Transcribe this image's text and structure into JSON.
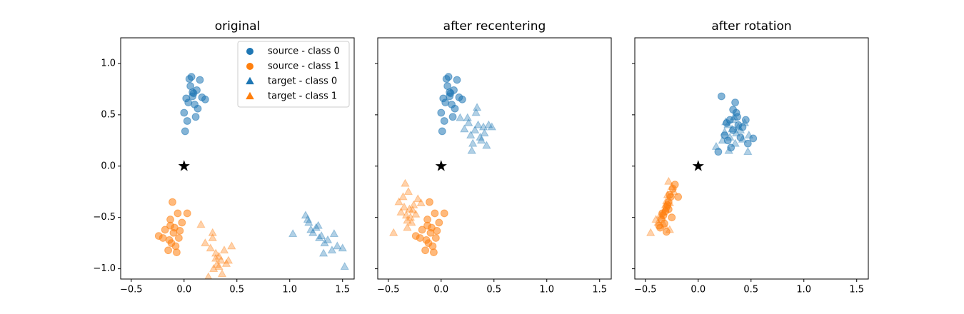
{
  "chart_data": [
    {
      "type": "scatter",
      "title": "original",
      "xlim": [
        -0.6,
        1.61
      ],
      "ylim": [
        -1.1,
        1.25
      ],
      "xticks": [
        {
          "value": -0.5,
          "label": "−0.5"
        },
        {
          "value": 0,
          "label": "0.0"
        },
        {
          "value": 0.5,
          "label": "0.5"
        },
        {
          "value": 1,
          "label": "1.0"
        },
        {
          "value": 1.5,
          "label": "1.5"
        }
      ],
      "yticks": [
        {
          "value": -1,
          "label": "−1.0"
        },
        {
          "value": -0.5,
          "label": "−0.5"
        },
        {
          "value": 0,
          "label": "0.0"
        },
        {
          "value": 0.5,
          "label": "0.5"
        },
        {
          "value": 1,
          "label": "1.0"
        }
      ],
      "legend": "upper right",
      "series": [
        {
          "name": "source - class 0",
          "color": "#1f77b4",
          "marker": "circle",
          "alpha": 0.55,
          "x": [
            0.08,
            0.05,
            0.12,
            0.02,
            0.1,
            0.06,
            0.15,
            0.0,
            0.09,
            0.04,
            0.2,
            0.13,
            0.07,
            0.03,
            0.17,
            0.11,
            0.01,
            0.08
          ],
          "y": [
            0.68,
            0.85,
            0.74,
            0.66,
            0.6,
            0.78,
            0.84,
            0.52,
            0.71,
            0.62,
            0.65,
            0.56,
            0.87,
            0.44,
            0.67,
            0.48,
            0.34,
            0.72
          ]
        },
        {
          "name": "source - class 1",
          "color": "#ff7f0e",
          "marker": "circle",
          "alpha": 0.55,
          "x": [
            -0.1,
            -0.13,
            -0.05,
            -0.18,
            -0.08,
            -0.02,
            -0.14,
            -0.11,
            -0.24,
            -0.06,
            -0.15,
            -0.09,
            0.03,
            -0.12,
            -0.04,
            -0.2,
            -0.07,
            -0.13
          ],
          "y": [
            -0.65,
            -0.58,
            -0.7,
            -0.62,
            -0.78,
            -0.55,
            -0.72,
            -0.35,
            -0.68,
            -0.46,
            -0.82,
            -0.6,
            -0.46,
            -0.75,
            -0.63,
            -0.7,
            -0.84,
            -0.52
          ]
        },
        {
          "name": "target - class 0",
          "color": "#1f77b4",
          "marker": "triangle",
          "alpha": 0.35,
          "x": [
            1.22,
            1.28,
            1.18,
            1.33,
            1.25,
            1.4,
            1.15,
            1.3,
            1.36,
            1.2,
            1.45,
            1.27,
            1.03,
            1.5,
            1.32,
            1.17,
            1.42,
            1.52
          ],
          "y": [
            -0.65,
            -0.7,
            -0.55,
            -0.75,
            -0.6,
            -0.82,
            -0.48,
            -0.68,
            -0.72,
            -0.62,
            -0.78,
            -0.58,
            -0.66,
            -0.8,
            -0.85,
            -0.52,
            -0.66,
            -0.98
          ]
        },
        {
          "name": "target - class 1",
          "color": "#ff7f0e",
          "marker": "triangle",
          "alpha": 0.35,
          "x": [
            0.3,
            0.35,
            0.25,
            0.4,
            0.28,
            0.33,
            0.2,
            0.38,
            0.31,
            0.45,
            0.16,
            0.27,
            0.36,
            0.3,
            0.42,
            0.23,
            0.33,
            0.27
          ],
          "y": [
            -0.85,
            -0.92,
            -0.8,
            -0.95,
            -1.0,
            -0.88,
            -0.75,
            -0.82,
            -0.96,
            -0.78,
            -0.57,
            -0.65,
            -1.05,
            -0.9,
            -0.92,
            -1.08,
            -0.98,
            -0.7
          ]
        },
        {
          "color": "#000000",
          "marker": "star",
          "alpha": 1,
          "x": [
            0
          ],
          "y": [
            0
          ]
        }
      ]
    },
    {
      "type": "scatter",
      "title": "after recentering",
      "xlim": [
        -0.6,
        1.61
      ],
      "ylim": [
        -1.1,
        1.25
      ],
      "xticks": [
        {
          "value": -0.5,
          "label": "−0.5"
        },
        {
          "value": 0,
          "label": "0.0"
        },
        {
          "value": 0.5,
          "label": "0.5"
        },
        {
          "value": 1,
          "label": "1.0"
        },
        {
          "value": 1.5,
          "label": "1.5"
        }
      ],
      "series": [
        {
          "color": "#1f77b4",
          "marker": "circle",
          "alpha": 0.55,
          "x": [
            0.08,
            0.05,
            0.12,
            0.02,
            0.1,
            0.06,
            0.15,
            0.0,
            0.09,
            0.04,
            0.2,
            0.13,
            0.07,
            0.03,
            0.17,
            0.11,
            0.01,
            0.08
          ],
          "y": [
            0.68,
            0.85,
            0.74,
            0.66,
            0.6,
            0.78,
            0.84,
            0.52,
            0.71,
            0.62,
            0.65,
            0.56,
            0.87,
            0.44,
            0.67,
            0.48,
            0.34,
            0.72
          ]
        },
        {
          "color": "#ff7f0e",
          "marker": "circle",
          "alpha": 0.55,
          "x": [
            -0.1,
            -0.13,
            -0.05,
            -0.18,
            -0.08,
            -0.02,
            -0.14,
            -0.11,
            -0.24,
            -0.06,
            -0.15,
            -0.09,
            0.03,
            -0.12,
            -0.04,
            -0.2,
            -0.07,
            -0.13
          ],
          "y": [
            -0.65,
            -0.58,
            -0.7,
            -0.62,
            -0.78,
            -0.55,
            -0.72,
            -0.35,
            -0.68,
            -0.46,
            -0.82,
            -0.6,
            -0.46,
            -0.75,
            -0.63,
            -0.7,
            -0.84,
            -0.52
          ]
        },
        {
          "color": "#1f77b4",
          "marker": "triangle",
          "alpha": 0.35,
          "x": [
            0.32,
            0.35,
            0.28,
            0.4,
            0.3,
            0.25,
            0.37,
            0.45,
            0.22,
            0.33,
            0.48,
            0.29,
            0.38,
            0.43,
            0.18,
            0.34,
            0.26,
            0.41
          ],
          "y": [
            0.35,
            0.4,
            0.3,
            0.38,
            0.22,
            0.47,
            0.28,
            0.4,
            0.36,
            0.52,
            0.38,
            0.15,
            0.25,
            0.2,
            0.47,
            0.57,
            0.42,
            0.32
          ]
        },
        {
          "color": "#ff7f0e",
          "marker": "triangle",
          "alpha": 0.35,
          "x": [
            -0.3,
            -0.33,
            -0.26,
            -0.38,
            -0.28,
            -0.22,
            -0.35,
            -0.31,
            -0.45,
            -0.24,
            -0.32,
            -0.19,
            -0.36,
            -0.29,
            -0.34,
            -0.27,
            -0.4,
            -0.32
          ],
          "y": [
            -0.42,
            -0.48,
            -0.38,
            -0.45,
            -0.55,
            -0.32,
            -0.4,
            -0.25,
            -0.65,
            -0.47,
            -0.6,
            -0.36,
            -0.3,
            -0.5,
            -0.17,
            -0.43,
            -0.35,
            -0.53
          ]
        },
        {
          "color": "#000000",
          "marker": "star",
          "alpha": 1,
          "x": [
            0
          ],
          "y": [
            0
          ]
        }
      ]
    },
    {
      "type": "scatter",
      "title": "after rotation",
      "xlim": [
        -0.6,
        1.61
      ],
      "ylim": [
        -1.1,
        1.25
      ],
      "xticks": [
        {
          "value": -0.5,
          "label": "−0.5"
        },
        {
          "value": 0,
          "label": "0.0"
        },
        {
          "value": 0.5,
          "label": "0.5"
        },
        {
          "value": 1,
          "label": "1.0"
        },
        {
          "value": 1.5,
          "label": "1.5"
        }
      ],
      "series": [
        {
          "color": "#1f77b4",
          "marker": "circle",
          "alpha": 0.55,
          "x": [
            0.33,
            0.3,
            0.38,
            0.25,
            0.36,
            0.42,
            0.28,
            0.22,
            0.45,
            0.35,
            0.31,
            0.4,
            0.19,
            0.52,
            0.27,
            0.37,
            0.33,
            0.47
          ],
          "y": [
            0.35,
            0.45,
            0.4,
            0.3,
            0.52,
            0.38,
            0.25,
            0.68,
            0.45,
            0.62,
            0.18,
            0.28,
            0.14,
            0.27,
            0.42,
            0.48,
            0.55,
            0.22
          ]
        },
        {
          "color": "#ff7f0e",
          "marker": "circle",
          "alpha": 0.55,
          "x": [
            -0.3,
            -0.33,
            -0.28,
            -0.35,
            -0.26,
            -0.31,
            -0.24,
            -0.37,
            -0.29,
            -0.22,
            -0.34,
            -0.3,
            -0.27,
            -0.19,
            -0.32,
            -0.28,
            -0.36,
            -0.25
          ],
          "y": [
            -0.4,
            -0.48,
            -0.35,
            -0.52,
            -0.3,
            -0.44,
            -0.22,
            -0.58,
            -0.38,
            -0.18,
            -0.46,
            -0.64,
            -0.28,
            -0.3,
            -0.56,
            -0.42,
            -0.6,
            -0.5
          ]
        },
        {
          "color": "#1f77b4",
          "marker": "triangle",
          "alpha": 0.35,
          "x": [
            0.32,
            0.36,
            0.28,
            0.4,
            0.3,
            0.44,
            0.25,
            0.35,
            0.17,
            0.33,
            0.48,
            0.29,
            0.38,
            0.23,
            0.42,
            0.34,
            0.26,
            0.47
          ],
          "y": [
            0.36,
            0.32,
            0.4,
            0.35,
            0.28,
            0.42,
            0.33,
            0.22,
            0.19,
            0.45,
            0.3,
            0.15,
            0.38,
            0.25,
            0.26,
            0.48,
            0.43,
            0.14
          ]
        },
        {
          "color": "#ff7f0e",
          "marker": "triangle",
          "alpha": 0.35,
          "x": [
            -0.31,
            -0.34,
            -0.27,
            -0.38,
            -0.29,
            -0.25,
            -0.33,
            -0.45,
            -0.3,
            -0.28,
            -0.36,
            -0.23,
            -0.32,
            -0.27,
            -0.4,
            -0.31
          ],
          "y": [
            -0.42,
            -0.5,
            -0.36,
            -0.55,
            -0.28,
            -0.2,
            -0.45,
            -0.65,
            -0.34,
            -0.15,
            -0.48,
            -0.25,
            -0.58,
            -0.62,
            -0.52,
            -0.38
          ]
        },
        {
          "color": "#000000",
          "marker": "star",
          "alpha": 1,
          "x": [
            0
          ],
          "y": [
            0
          ]
        }
      ]
    }
  ]
}
